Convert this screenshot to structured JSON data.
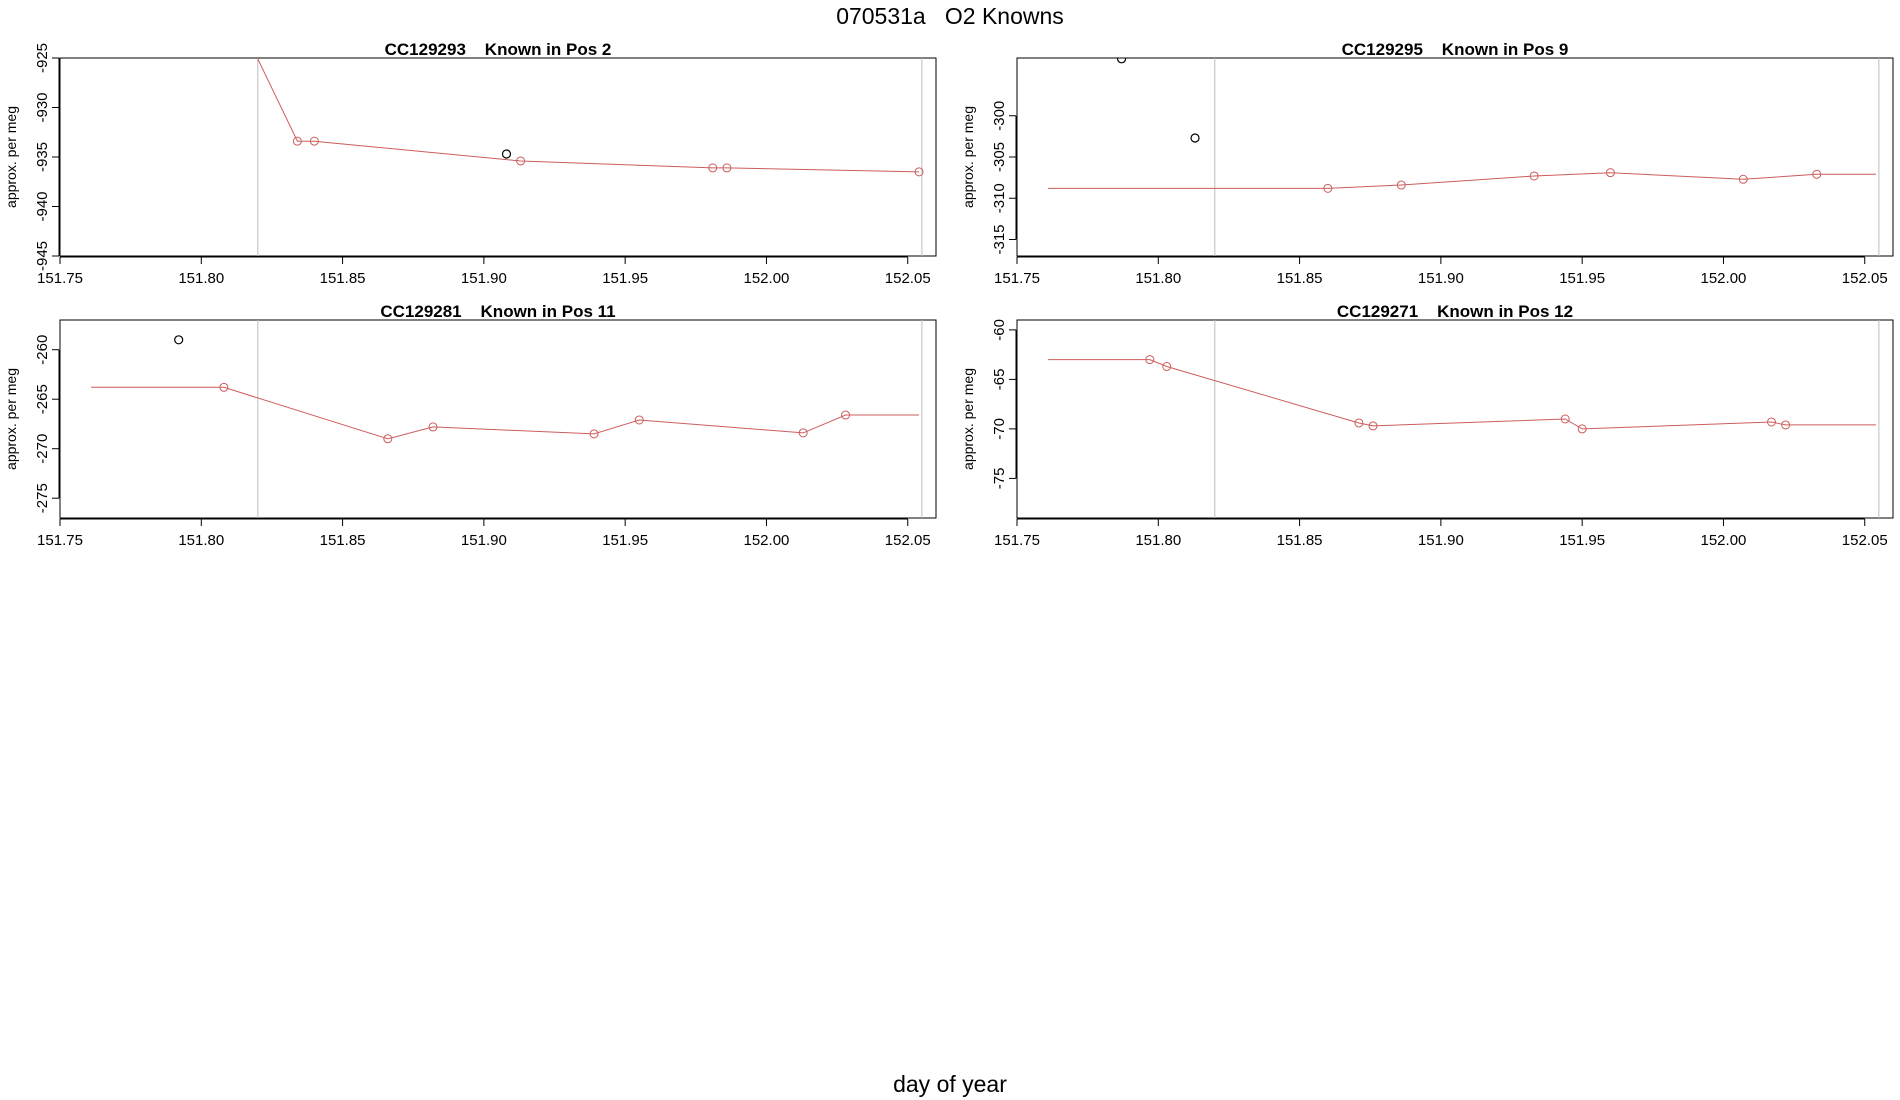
{
  "figure": {
    "title": "070531a   O2 Knowns",
    "xlabel": "day of year"
  },
  "colors": {
    "series": "#cd5c5c",
    "outlier": "#000000",
    "guide": "#bebebe"
  },
  "chart_data": [
    {
      "type": "line",
      "title": "CC129293    Known in Pos 2",
      "ylabel": "approx. per meg",
      "xlim": [
        151.75,
        152.06
      ],
      "ylim": [
        -945,
        -925
      ],
      "xticks": [
        151.75,
        151.8,
        151.85,
        151.9,
        151.95,
        152.0,
        152.05
      ],
      "xtick_labels": [
        "151.75",
        "151.80",
        "151.85",
        "151.90",
        "151.95",
        "152.00",
        "152.05"
      ],
      "yticks": [
        -945,
        -940,
        -935,
        -930,
        -925
      ],
      "ytick_labels": [
        "-945",
        "-940",
        "-935",
        "-930",
        "-925"
      ],
      "vlines": [
        151.82,
        152.055
      ],
      "line": {
        "x": [
          151.819,
          151.834,
          151.84,
          151.913,
          151.981,
          151.986,
          152.054
        ],
        "y": [
          -924.5,
          -933.4,
          -933.4,
          -935.4,
          -936.1,
          -936.1,
          -936.5
        ]
      },
      "points": {
        "x": [
          151.834,
          151.84,
          151.913,
          151.981,
          151.986,
          152.054
        ],
        "y": [
          -933.4,
          -933.4,
          -935.4,
          -936.1,
          -936.1,
          -936.5
        ]
      },
      "outliers": {
        "x": [
          151.908
        ],
        "y": [
          -934.7
        ]
      }
    },
    {
      "type": "line",
      "title": "CC129295    Known in Pos 9",
      "ylabel": "approx. per meg",
      "xlim": [
        151.75,
        152.06
      ],
      "ylim": [
        -317,
        -293
      ],
      "xticks": [
        151.75,
        151.8,
        151.85,
        151.9,
        151.95,
        152.0,
        152.05
      ],
      "xtick_labels": [
        "151.75",
        "151.80",
        "151.85",
        "151.90",
        "151.95",
        "152.00",
        "152.05"
      ],
      "yticks": [
        -315,
        -310,
        -305,
        -300
      ],
      "ytick_labels": [
        "-315",
        "-310",
        "-305",
        "-300"
      ],
      "vlines": [
        151.82,
        152.055
      ],
      "line": {
        "x": [
          151.761,
          151.86,
          151.886,
          151.933,
          151.96,
          152.007,
          152.033,
          152.054
        ],
        "y": [
          -308.8,
          -308.8,
          -308.4,
          -307.3,
          -306.9,
          -307.7,
          -307.1,
          -307.1
        ]
      },
      "points": {
        "x": [
          151.86,
          151.886,
          151.933,
          151.96,
          152.007,
          152.033
        ],
        "y": [
          -308.8,
          -308.4,
          -307.3,
          -306.9,
          -307.7,
          -307.1
        ]
      },
      "outliers": {
        "x": [
          151.787,
          151.813
        ],
        "y": [
          -293.1,
          -302.7
        ]
      }
    },
    {
      "type": "line",
      "title": "CC129281    Known in Pos 11",
      "ylabel": "approx. per meg",
      "xlim": [
        151.75,
        152.06
      ],
      "ylim": [
        -277,
        -257
      ],
      "xticks": [
        151.75,
        151.8,
        151.85,
        151.9,
        151.95,
        152.0,
        152.05
      ],
      "xtick_labels": [
        "151.75",
        "151.80",
        "151.85",
        "151.90",
        "151.95",
        "152.00",
        "152.05"
      ],
      "yticks": [
        -275,
        -270,
        -265,
        -260
      ],
      "ytick_labels": [
        "-275",
        "-270",
        "-265",
        "-260"
      ],
      "vlines": [
        151.82,
        152.055
      ],
      "line": {
        "x": [
          151.761,
          151.808,
          151.866,
          151.882,
          151.939,
          151.955,
          152.013,
          152.028,
          152.054
        ],
        "y": [
          -263.8,
          -263.8,
          -269.0,
          -267.8,
          -268.5,
          -267.1,
          -268.4,
          -266.6,
          -266.6
        ]
      },
      "points": {
        "x": [
          151.808,
          151.866,
          151.882,
          151.939,
          151.955,
          152.013,
          152.028
        ],
        "y": [
          -263.8,
          -269.0,
          -267.8,
          -268.5,
          -267.1,
          -268.4,
          -266.6
        ]
      },
      "outliers": {
        "x": [
          151.792
        ],
        "y": [
          -259.0
        ]
      }
    },
    {
      "type": "line",
      "title": "CC129271    Known in Pos 12",
      "ylabel": "approx. per meg",
      "xlim": [
        151.75,
        152.06
      ],
      "ylim": [
        -79,
        -59
      ],
      "xticks": [
        151.75,
        151.8,
        151.85,
        151.9,
        151.95,
        152.0,
        152.05
      ],
      "xtick_labels": [
        "151.75",
        "151.80",
        "151.85",
        "151.90",
        "151.95",
        "152.00",
        "152.05"
      ],
      "yticks": [
        -75,
        -70,
        -65,
        -60
      ],
      "ytick_labels": [
        "-75",
        "-70",
        "-65",
        "-60"
      ],
      "vlines": [
        151.82,
        152.055
      ],
      "line": {
        "x": [
          151.761,
          151.797,
          151.803,
          151.871,
          151.876,
          151.944,
          151.95,
          152.017,
          152.022,
          152.054
        ],
        "y": [
          -63.0,
          -63.0,
          -63.7,
          -69.4,
          -69.7,
          -69.0,
          -70.0,
          -69.3,
          -69.6,
          -69.6
        ]
      },
      "points": {
        "x": [
          151.797,
          151.803,
          151.871,
          151.876,
          151.944,
          151.95,
          152.017,
          152.022
        ],
        "y": [
          -63.0,
          -63.7,
          -69.4,
          -69.7,
          -69.0,
          -70.0,
          -69.3,
          -69.6
        ]
      },
      "outliers": {
        "x": [],
        "y": []
      }
    }
  ]
}
